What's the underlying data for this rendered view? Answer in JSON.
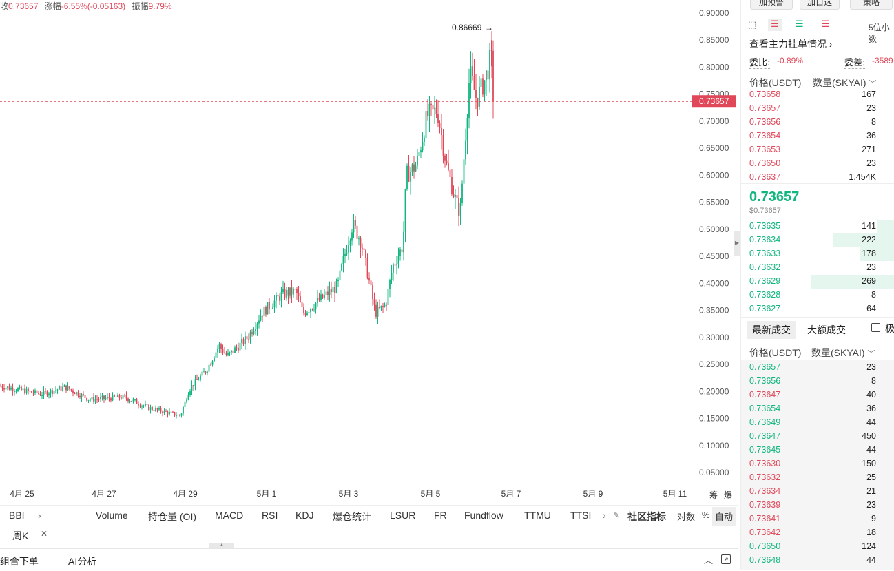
{
  "header": {
    "price_label": "收",
    "price_value": "0.73657",
    "change_label": "涨幅",
    "change_value": "-6.55%(-0.05163)",
    "amplitude_label": "振幅",
    "amplitude_value": "9.79%"
  },
  "chart_data": {
    "type": "candlestick",
    "y_ticks": [
      "0.90000",
      "0.85000",
      "0.80000",
      "0.75000",
      "0.70000",
      "0.65000",
      "0.60000",
      "0.55000",
      "0.50000",
      "0.45000",
      "0.40000",
      "0.35000",
      "0.30000",
      "0.25000",
      "0.20000",
      "0.15000",
      "0.10000",
      "0.05000"
    ],
    "x_ticks": [
      "4月 25",
      "4月 27",
      "4月 29",
      "5月 1",
      "5月 3",
      "5月 5",
      "5月 7",
      "5月 9",
      "5月 11"
    ],
    "ylim": [
      0.02,
      0.92
    ],
    "high_label": "0.86669",
    "current_price_label": "0.73657",
    "right_axis_labels": [
      "筹",
      "爆"
    ],
    "up_color": "#11b67f",
    "down_color": "#e0485a"
  },
  "indicators": {
    "tabs": [
      "BBI",
      "Volume",
      "持仓量 (OI)",
      "MACD",
      "RSI",
      "KDJ",
      "爆仓统计",
      "LSUR",
      "FR",
      "Fundflow",
      "TTMU",
      "TTSI"
    ],
    "community_label": "社区指标",
    "log_label": "对数",
    "percent_label": "%",
    "auto_label": "自动",
    "timeframe": "周K"
  },
  "bottom": {
    "combo_order": "组合下单",
    "ai_analysis": "AI分析"
  },
  "panel": {
    "top_buttons": [
      "加预警",
      "加自选",
      "策略"
    ],
    "decimals": "5位小数",
    "main_orders": "查看主力挂单情况",
    "ratio_label": "委比:",
    "ratio_value": "-0.89%",
    "diff_label": "委差:",
    "diff_value": "-3589",
    "col_price": "价格(USDT)",
    "col_qty": "数量(SKYAI)",
    "asks": [
      {
        "p": "0.73658",
        "q": "167"
      },
      {
        "p": "0.73657",
        "q": "23"
      },
      {
        "p": "0.73656",
        "q": "8"
      },
      {
        "p": "0.73654",
        "q": "36"
      },
      {
        "p": "0.73653",
        "q": "271"
      },
      {
        "p": "0.73650",
        "q": "23"
      },
      {
        "p": "0.73637",
        "q": "1.454K"
      }
    ],
    "last_price": "0.73657",
    "last_price_usd": "$0.73657",
    "bids": [
      {
        "p": "0.73635",
        "q": "141",
        "w": 0.12
      },
      {
        "p": "0.73634",
        "q": "222",
        "w": 0.42
      },
      {
        "p": "0.73633",
        "q": "178",
        "w": 0.24
      },
      {
        "p": "0.73632",
        "q": "23",
        "w": 0
      },
      {
        "p": "0.73629",
        "q": "269",
        "w": 0.58
      },
      {
        "p": "0.73628",
        "q": "8",
        "w": 0
      },
      {
        "p": "0.73627",
        "q": "64",
        "w": 0
      }
    ],
    "tab_latest": "最新成交",
    "tab_large": "大额成交",
    "tab_extreme": "极",
    "trades": [
      {
        "p": "0.73657",
        "q": "23",
        "side": "up"
      },
      {
        "p": "0.73656",
        "q": "8",
        "side": "up"
      },
      {
        "p": "0.73647",
        "q": "40",
        "side": "down"
      },
      {
        "p": "0.73654",
        "q": "36",
        "side": "up"
      },
      {
        "p": "0.73649",
        "q": "44",
        "side": "up"
      },
      {
        "p": "0.73647",
        "q": "450",
        "side": "up"
      },
      {
        "p": "0.73645",
        "q": "44",
        "side": "up"
      },
      {
        "p": "0.73630",
        "q": "150",
        "side": "down"
      },
      {
        "p": "0.73632",
        "q": "25",
        "side": "down"
      },
      {
        "p": "0.73634",
        "q": "21",
        "side": "down"
      },
      {
        "p": "0.73639",
        "q": "23",
        "side": "down"
      },
      {
        "p": "0.73641",
        "q": "9",
        "side": "down"
      },
      {
        "p": "0.73642",
        "q": "18",
        "side": "down"
      },
      {
        "p": "0.73650",
        "q": "124",
        "side": "up"
      },
      {
        "p": "0.73648",
        "q": "44",
        "side": "up"
      }
    ]
  }
}
